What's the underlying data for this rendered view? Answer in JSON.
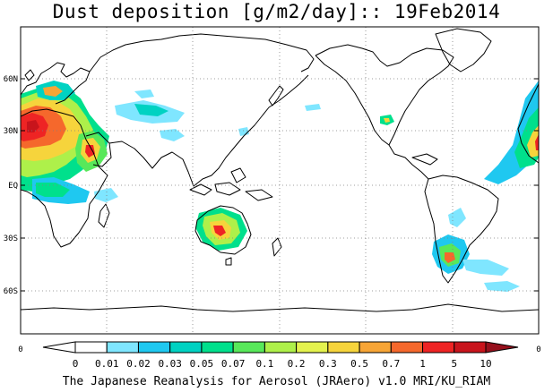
{
  "title": "Dust deposition [g/m2/day]:: 19Feb2014",
  "lat_labels": [
    "60N",
    "30N",
    "EQ",
    "30S",
    "60S"
  ],
  "lon_edge_labels": [
    "0",
    "0"
  ],
  "colorbar": {
    "labels": [
      "0",
      "0.01",
      "0.02",
      "0.03",
      "0.05",
      "0.07",
      "0.1",
      "0.2",
      "0.3",
      "0.5",
      "0.7",
      "1",
      "5",
      "10"
    ],
    "colors": [
      "#ffffff",
      "#ffffff",
      "#7fe6ff",
      "#1fc8f0",
      "#00d2c2",
      "#00e08c",
      "#58e85a",
      "#aef04a",
      "#e4f24e",
      "#f6d43c",
      "#f7a536",
      "#f5682c",
      "#ee2424",
      "#c8141c",
      "#96101c"
    ]
  },
  "footer": "The Japanese Reanalysis for Aerosol (JRAero) v1.0 MRI/KU_RIAM"
}
